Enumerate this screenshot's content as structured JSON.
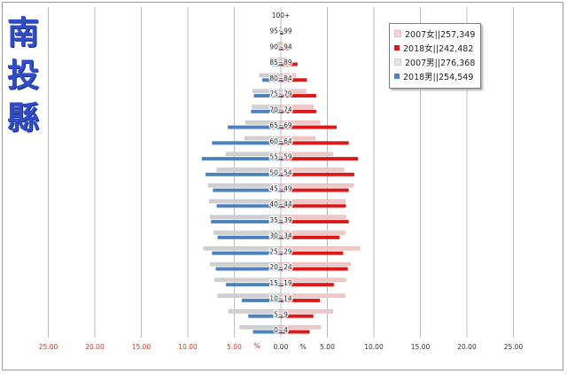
{
  "region_title": [
    "南",
    "投",
    "縣"
  ],
  "legend": [
    {
      "label": "2007女||257,349",
      "color": "#f4d4d4"
    },
    {
      "label": "2018女||242,482",
      "color": "#dd1a1a"
    },
    {
      "label": "2007男||276,368",
      "color": "#dcdcdc"
    },
    {
      "label": "2018男||254,549",
      "color": "#4f81bd"
    }
  ],
  "axis_unit_left": "%",
  "axis_unit_right": "%",
  "colors": {
    "female_2007": "#f0c8c8",
    "female_2018": "#dd1a1a",
    "male_2007": "#d0d0d0",
    "male_2018": "#4f81bd",
    "tick_left": "#c0392b",
    "tick_right": "#333333",
    "grid": "#bdbdbd"
  },
  "chart_data": {
    "type": "bar",
    "orientation": "horizontal-pyramid",
    "categories": [
      "0~4",
      "5~9",
      "10~14",
      "15~19",
      "20~24",
      "25~29",
      "30~34",
      "35~39",
      "40~44",
      "45~49",
      "50~54",
      "55~59",
      "60~64",
      "65~69",
      "70~74",
      "75~79",
      "80~84",
      "85~89",
      "90~94",
      "95~99",
      "100+"
    ],
    "series": [
      {
        "name": "2007女||257,349",
        "side": "female",
        "values": [
          4.3,
          5.6,
          6.9,
          7.0,
          7.5,
          8.5,
          6.9,
          7.0,
          6.9,
          7.8,
          6.8,
          5.6,
          3.7,
          4.2,
          3.5,
          2.7,
          1.6,
          0.6,
          0.2,
          0.05,
          0.01
        ]
      },
      {
        "name": "2018女||242,482",
        "side": "female",
        "values": [
          3.1,
          3.5,
          4.2,
          5.7,
          7.2,
          6.7,
          6.3,
          7.3,
          7.0,
          7.3,
          7.9,
          8.3,
          7.3,
          6.0,
          3.8,
          3.8,
          2.8,
          1.8,
          0.8,
          0.3,
          0.05
        ]
      },
      {
        "name": "2007男||276,368",
        "side": "male",
        "values": [
          4.4,
          5.6,
          6.8,
          7.1,
          7.6,
          8.3,
          7.2,
          7.6,
          7.7,
          7.8,
          6.9,
          5.9,
          3.9,
          3.8,
          3.1,
          3.0,
          2.3,
          1.1,
          0.4,
          0.1,
          0.02
        ]
      },
      {
        "name": "2018男||254,549",
        "side": "male",
        "values": [
          3.0,
          3.5,
          4.2,
          5.9,
          7.0,
          7.4,
          6.8,
          7.5,
          6.9,
          7.3,
          8.1,
          8.5,
          7.4,
          5.7,
          3.2,
          2.9,
          2.0,
          1.0,
          0.3,
          0.1,
          0.02
        ]
      }
    ],
    "xlim": [
      -25,
      25
    ],
    "tick_values": [
      25,
      20,
      15,
      10,
      5,
      0,
      5,
      10,
      15,
      20,
      25
    ],
    "tick_labels": [
      "25.00",
      "20.00",
      "15.00",
      "10.00",
      "5.00",
      "0.00",
      "5.00",
      "10.00",
      "15.00",
      "20.00",
      "25.00"
    ],
    "grid": true
  }
}
